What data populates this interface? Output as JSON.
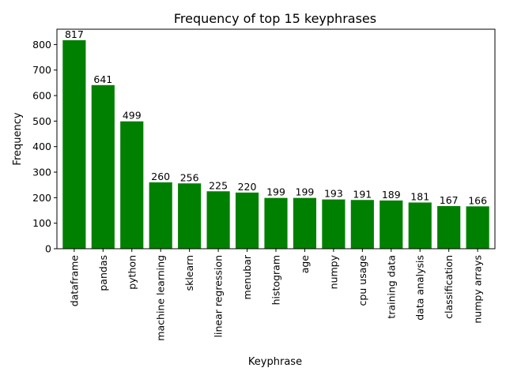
{
  "chart_data": {
    "type": "bar",
    "title": "Frequency of top 15 keyphrases",
    "xlabel": "Keyphrase",
    "ylabel": "Frequency",
    "categories": [
      "dataframe",
      "pandas",
      "python",
      "machine learning",
      "sklearn",
      "linear regression",
      "menubar",
      "histogram",
      "age",
      "numpy",
      "cpu usage",
      "training data",
      "data analysis",
      "classification",
      "numpy arrays"
    ],
    "values": [
      817,
      641,
      499,
      260,
      256,
      225,
      220,
      199,
      199,
      193,
      191,
      189,
      181,
      167,
      166
    ],
    "ylim": [
      0,
      860
    ],
    "yticks": [
      0,
      100,
      200,
      300,
      400,
      500,
      600,
      700,
      800
    ],
    "bar_color": "#008000",
    "grid": false,
    "legend": "none"
  }
}
